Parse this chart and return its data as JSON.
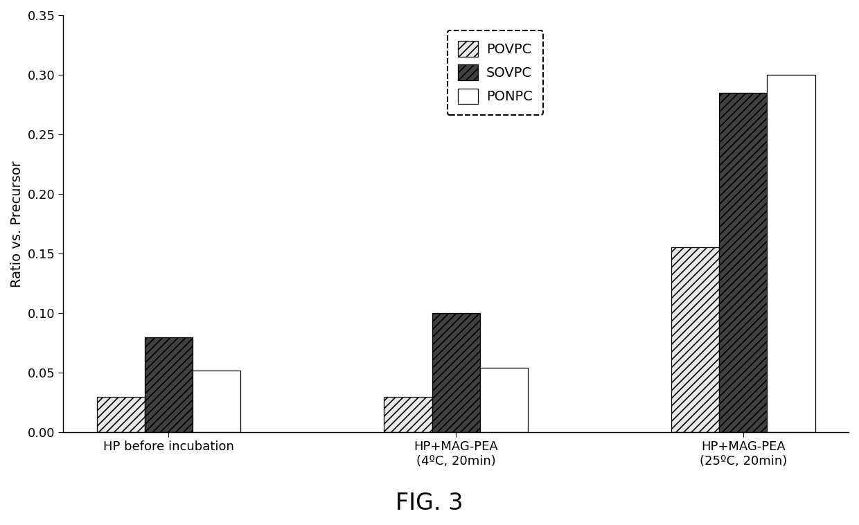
{
  "categories": [
    "HP before incubation",
    "HP+MAG-PEA\n(4ºC, 20min)",
    "HP+MAG-PEA\n(25ºC, 20min)"
  ],
  "series": {
    "POVPC": [
      0.03,
      0.03,
      0.155
    ],
    "SOVPC": [
      0.08,
      0.1,
      0.285
    ],
    "PONPC": [
      0.052,
      0.054,
      0.3
    ]
  },
  "ylabel": "Ratio vs. Precursor",
  "ylim": [
    0,
    0.35
  ],
  "yticks": [
    0.0,
    0.05,
    0.1,
    0.15,
    0.2,
    0.25,
    0.3,
    0.35
  ],
  "title": "FIG. 3",
  "bar_width": 0.25,
  "hatch_POVPC": "///",
  "hatch_SOVPC": "///",
  "hatch_PONPC": "",
  "facecolor_POVPC": "#e8e8e8",
  "facecolor_SOVPC": "#404040",
  "facecolor_PONPC": "#ffffff",
  "hatch_color_POVPC": "#000000",
  "hatch_color_SOVPC": "#ffffff",
  "edgecolor": "#000000",
  "background_color": "#ffffff",
  "legend_labels": [
    "POVPC",
    "SOVPC",
    "PONPC"
  ],
  "title_fontsize": 24,
  "axis_label_fontsize": 14,
  "tick_fontsize": 13,
  "legend_fontsize": 14
}
